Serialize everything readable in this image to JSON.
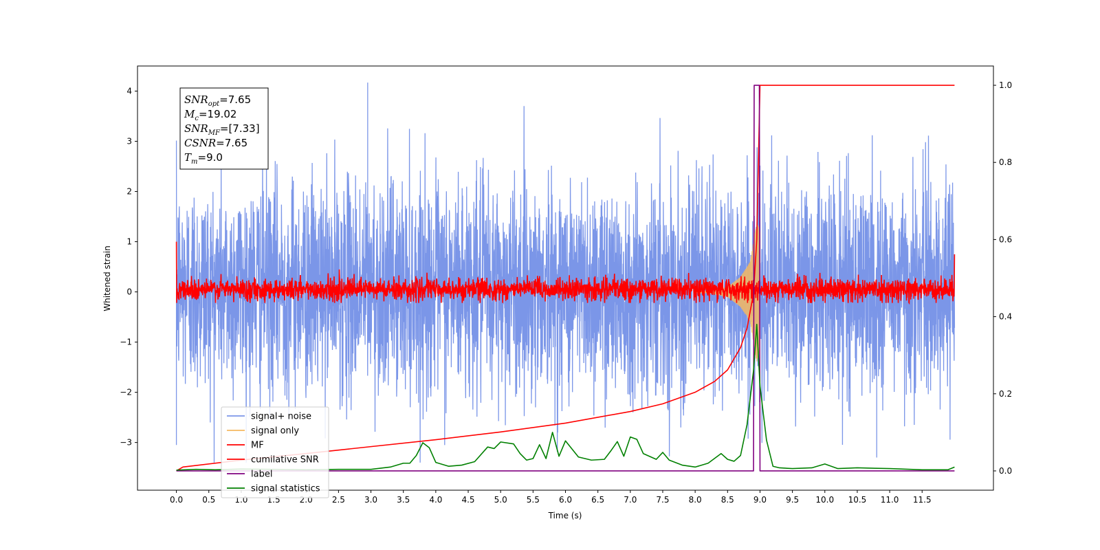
{
  "chart_data": {
    "type": "line",
    "xlabel": "Time (s)",
    "ylabel_left": "Whitened strain",
    "ylabel_right": "",
    "xlim": [
      -0.6,
      12.6
    ],
    "ylim_left": [
      -3.95,
      4.5
    ],
    "ylim_right": [
      -0.05,
      1.05
    ],
    "x_ticks": [
      0.0,
      0.5,
      1.0,
      1.5,
      2.0,
      2.5,
      3.0,
      3.5,
      4.0,
      4.5,
      5.0,
      5.5,
      6.0,
      6.5,
      7.0,
      7.5,
      8.0,
      8.5,
      9.0,
      9.5,
      10.0,
      10.5,
      11.0,
      11.5
    ],
    "x_tick_labels": [
      "0.0",
      "0.5",
      "1.0",
      "1.5",
      "2.0",
      "2.5",
      "3.0",
      "3.5",
      "4.0",
      "4.5",
      "5.0",
      "5.5",
      "6.0",
      "6.5",
      "7.0",
      "7.5",
      "8.0",
      "8.5",
      "9.0",
      "9.5",
      "10.0",
      "10.5",
      "11.0",
      "11.5"
    ],
    "y_ticks_left": [
      -3,
      -2,
      -1,
      0,
      1,
      2,
      3,
      4
    ],
    "y_tick_labels_left": [
      "−3",
      "−2",
      "−1",
      "0",
      "1",
      "2",
      "3",
      "4"
    ],
    "y_ticks_right": [
      0.0,
      0.2,
      0.4,
      0.6,
      0.8,
      1.0
    ],
    "y_tick_labels_right": [
      "0.0",
      "0.2",
      "0.4",
      "0.6",
      "0.8",
      "1.0"
    ],
    "grid": false,
    "legend_placement": "lower-left",
    "annotation": [
      {
        "main": "SNR",
        "sub": "opt",
        "rest": "=7.65"
      },
      {
        "main": "M",
        "sub": "c",
        "rest": "=19.02"
      },
      {
        "main": "SNR",
        "sub": "MF",
        "rest": "=[7.33]"
      },
      {
        "main": "CSNR",
        "sub": "",
        "rest": "=7.65"
      },
      {
        "main": "T",
        "sub": "m",
        "rest": "=9.0"
      }
    ],
    "series": [
      {
        "name": "signal+ noise",
        "color": "#7b96e8",
        "axis": "left",
        "x_range": [
          0.0,
          12.0
        ],
        "envelope": [
          2.5,
          -2.3
        ],
        "note_peaks": [
          [
            2.95,
            4.17
          ],
          [
            0.0,
            -3.05
          ],
          [
            10.8,
            -3.3
          ]
        ]
      },
      {
        "name": "signal only",
        "color": "#f4b860",
        "axis": "left",
        "x": [
          0.0,
          8.2,
          8.5,
          8.7,
          8.85,
          8.95,
          9.0,
          9.01,
          12.0
        ],
        "amplitude": [
          0.0,
          0.02,
          0.1,
          0.3,
          0.6,
          1.4,
          1.2,
          0.0,
          0.0
        ]
      },
      {
        "name": "MF",
        "color": "#ff0000",
        "axis": "left",
        "x_range": [
          0.0,
          12.0
        ],
        "envelope": [
          0.35,
          -0.2
        ],
        "start_value": 1.0,
        "end_value": 0.75
      },
      {
        "name": "cumilative SNR",
        "color": "#ff0000",
        "axis": "right",
        "x": [
          0.0,
          0.1,
          1.0,
          2.0,
          3.0,
          4.0,
          5.0,
          6.0,
          7.0,
          7.5,
          8.0,
          8.3,
          8.5,
          8.7,
          8.8,
          8.9,
          8.95,
          9.0,
          12.0
        ],
        "y": [
          0.0,
          0.01,
          0.028,
          0.045,
          0.063,
          0.081,
          0.101,
          0.124,
          0.154,
          0.174,
          0.204,
          0.232,
          0.262,
          0.32,
          0.37,
          0.46,
          0.6,
          1.0,
          1.0
        ]
      },
      {
        "name": "label",
        "color": "#800080",
        "axis": "right",
        "x": [
          0.0,
          8.9,
          8.91,
          8.99,
          9.0,
          12.0
        ],
        "y": [
          0.0,
          0.0,
          1.0,
          1.0,
          0.0,
          0.0
        ]
      },
      {
        "name": "signal statistics",
        "color": "#008000",
        "axis": "right",
        "x": [
          0.0,
          0.3,
          0.6,
          1.0,
          1.5,
          2.0,
          2.5,
          3.0,
          3.3,
          3.5,
          3.6,
          3.7,
          3.8,
          3.9,
          4.0,
          4.2,
          4.4,
          4.6,
          4.8,
          4.9,
          5.0,
          5.2,
          5.3,
          5.4,
          5.5,
          5.6,
          5.7,
          5.8,
          5.9,
          6.0,
          6.2,
          6.4,
          6.6,
          6.7,
          6.8,
          6.9,
          7.0,
          7.1,
          7.2,
          7.4,
          7.5,
          7.6,
          7.8,
          8.0,
          8.2,
          8.4,
          8.5,
          8.6,
          8.7,
          8.8,
          8.9,
          8.95,
          9.0,
          9.1,
          9.2,
          9.3,
          9.5,
          9.8,
          10.0,
          10.2,
          10.5,
          11.0,
          11.5,
          11.9,
          12.0
        ],
        "y": [
          0.002,
          0.004,
          0.003,
          0.005,
          0.004,
          0.003,
          0.004,
          0.004,
          0.01,
          0.02,
          0.02,
          0.04,
          0.073,
          0.06,
          0.022,
          0.012,
          0.015,
          0.024,
          0.062,
          0.058,
          0.075,
          0.07,
          0.045,
          0.028,
          0.032,
          0.068,
          0.032,
          0.1,
          0.038,
          0.078,
          0.036,
          0.028,
          0.03,
          0.052,
          0.076,
          0.038,
          0.088,
          0.082,
          0.045,
          0.03,
          0.048,
          0.028,
          0.015,
          0.01,
          0.02,
          0.045,
          0.03,
          0.025,
          0.04,
          0.12,
          0.26,
          0.38,
          0.22,
          0.08,
          0.012,
          0.008,
          0.006,
          0.008,
          0.018,
          0.006,
          0.008,
          0.006,
          0.003,
          0.003,
          0.01
        ]
      }
    ]
  }
}
